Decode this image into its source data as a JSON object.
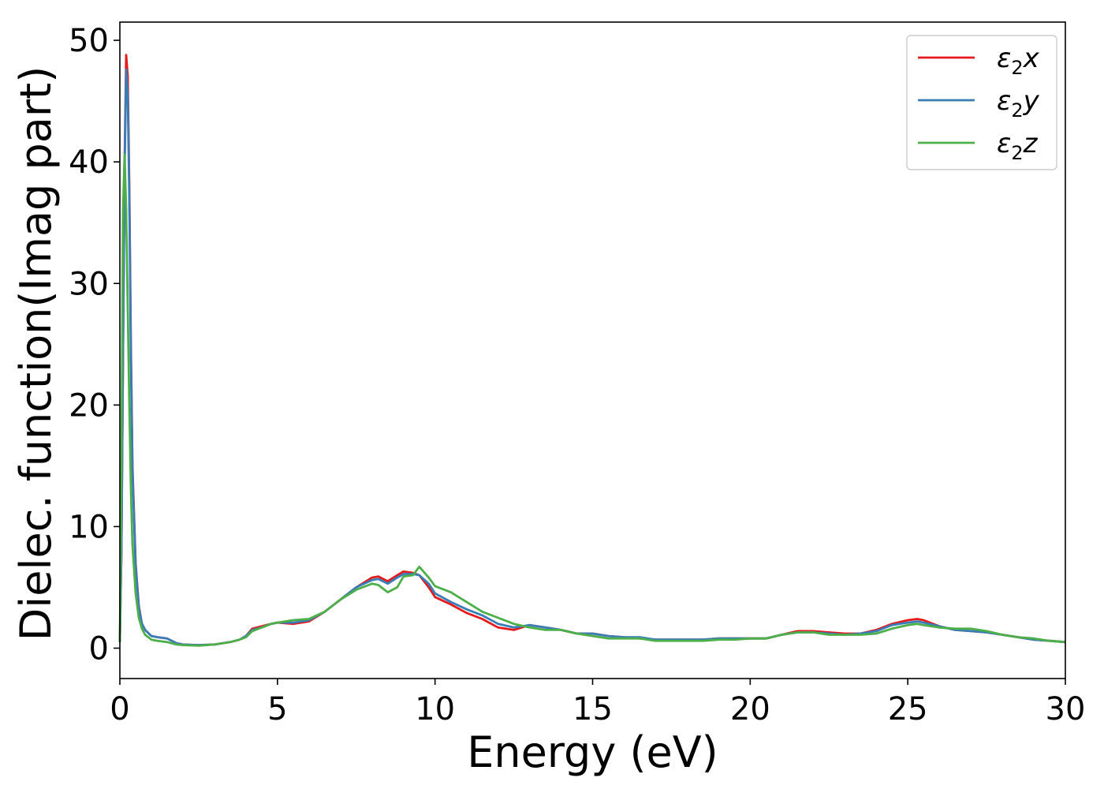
{
  "chart_data": {
    "type": "line",
    "xlabel": "Energy (eV)",
    "ylabel": "Dielec. function(Imag part)",
    "xlim": [
      0,
      30
    ],
    "ylim": [
      -2.5,
      51.5
    ],
    "xticks": [
      0,
      5,
      10,
      15,
      20,
      25,
      30
    ],
    "yticks": [
      0,
      10,
      20,
      30,
      40,
      50
    ],
    "grid": false,
    "legend_position": "top-right",
    "series": [
      {
        "name": "ε₂x",
        "legend": {
          "base": "ε",
          "sub": "2",
          "suffix": "x"
        },
        "color": "#e41a1c",
        "x": [
          0,
          0.05,
          0.1,
          0.15,
          0.2,
          0.25,
          0.3,
          0.35,
          0.4,
          0.5,
          0.6,
          0.7,
          0.8,
          1.0,
          1.2,
          1.5,
          1.8,
          2.0,
          2.5,
          3.0,
          3.5,
          3.8,
          4.0,
          4.2,
          4.5,
          4.8,
          5.0,
          5.5,
          6.0,
          6.5,
          7.0,
          7.5,
          8.0,
          8.2,
          8.5,
          8.8,
          9.0,
          9.3,
          9.5,
          9.8,
          10.0,
          10.5,
          11.0,
          11.5,
          12.0,
          12.5,
          13.0,
          13.5,
          14.0,
          14.5,
          15.0,
          15.5,
          16.0,
          16.5,
          17.0,
          17.5,
          18.0,
          18.5,
          19.0,
          19.5,
          20.0,
          20.5,
          21.0,
          21.5,
          22.0,
          22.5,
          23.0,
          23.5,
          24.0,
          24.5,
          25.0,
          25.3,
          25.5,
          26.0,
          26.5,
          27.0,
          27.5,
          28.0,
          28.5,
          29.0,
          29.5,
          30.0
        ],
        "values": [
          0.5,
          8,
          24,
          40,
          48.8,
          47.0,
          38,
          25,
          15,
          7,
          3.5,
          2.0,
          1.5,
          1.0,
          0.9,
          0.8,
          0.4,
          0.3,
          0.25,
          0.3,
          0.5,
          0.7,
          1.0,
          1.6,
          1.8,
          2.0,
          2.1,
          2.0,
          2.2,
          3.0,
          4.0,
          5.0,
          5.8,
          5.9,
          5.5,
          6.0,
          6.3,
          6.2,
          6.0,
          5.0,
          4.2,
          3.6,
          2.9,
          2.4,
          1.7,
          1.5,
          1.9,
          1.7,
          1.5,
          1.2,
          1.2,
          1.0,
          0.9,
          0.8,
          0.7,
          0.7,
          0.7,
          0.7,
          0.8,
          0.8,
          0.8,
          0.8,
          1.1,
          1.4,
          1.4,
          1.3,
          1.2,
          1.2,
          1.5,
          2.0,
          2.3,
          2.4,
          2.3,
          1.8,
          1.5,
          1.4,
          1.3,
          1.1,
          0.9,
          0.7,
          0.6,
          0.5
        ]
      },
      {
        "name": "ε₂y",
        "legend": {
          "base": "ε",
          "sub": "2",
          "suffix": "y"
        },
        "color": "#377eb8",
        "x": [
          0,
          0.05,
          0.1,
          0.15,
          0.2,
          0.25,
          0.3,
          0.35,
          0.4,
          0.5,
          0.6,
          0.7,
          0.8,
          1.0,
          1.2,
          1.5,
          1.8,
          2.0,
          2.5,
          3.0,
          3.5,
          3.8,
          4.0,
          4.2,
          4.5,
          4.8,
          5.0,
          5.5,
          6.0,
          6.5,
          7.0,
          7.5,
          8.0,
          8.2,
          8.5,
          8.8,
          9.0,
          9.3,
          9.5,
          9.8,
          10.0,
          10.5,
          11.0,
          11.5,
          12.0,
          12.5,
          13.0,
          13.5,
          14.0,
          14.5,
          15.0,
          15.5,
          16.0,
          16.5,
          17.0,
          17.5,
          18.0,
          18.5,
          19.0,
          19.5,
          20.0,
          20.5,
          21.0,
          21.5,
          22.0,
          22.5,
          23.0,
          23.5,
          24.0,
          24.5,
          25.0,
          25.3,
          25.5,
          26.0,
          26.5,
          27.0,
          27.5,
          28.0,
          28.5,
          29.0,
          29.5,
          30.0
        ],
        "values": [
          0.5,
          8,
          24,
          39,
          47.6,
          45.5,
          37,
          24,
          14.5,
          6.8,
          3.4,
          2.0,
          1.5,
          1.0,
          0.9,
          0.8,
          0.4,
          0.3,
          0.25,
          0.3,
          0.5,
          0.7,
          1.0,
          1.5,
          1.7,
          2.0,
          2.1,
          2.1,
          2.3,
          3.0,
          4.0,
          5.0,
          5.6,
          5.7,
          5.3,
          5.8,
          6.1,
          6.1,
          6.0,
          5.3,
          4.5,
          3.8,
          3.2,
          2.7,
          2.0,
          1.7,
          1.9,
          1.7,
          1.5,
          1.2,
          1.2,
          1.0,
          0.9,
          0.9,
          0.7,
          0.7,
          0.7,
          0.7,
          0.8,
          0.8,
          0.8,
          0.8,
          1.1,
          1.3,
          1.3,
          1.2,
          1.1,
          1.2,
          1.4,
          1.9,
          2.1,
          2.2,
          2.1,
          1.8,
          1.5,
          1.4,
          1.3,
          1.1,
          0.9,
          0.7,
          0.6,
          0.5
        ]
      },
      {
        "name": "ε₂z",
        "legend": {
          "base": "ε",
          "sub": "2",
          "suffix": "z"
        },
        "color": "#4daf4a",
        "x": [
          0,
          0.05,
          0.1,
          0.15,
          0.2,
          0.25,
          0.3,
          0.35,
          0.4,
          0.5,
          0.6,
          0.7,
          0.8,
          1.0,
          1.2,
          1.5,
          1.8,
          2.0,
          2.5,
          3.0,
          3.5,
          3.8,
          4.0,
          4.2,
          4.5,
          4.8,
          5.0,
          5.5,
          6.0,
          6.5,
          7.0,
          7.5,
          8.0,
          8.2,
          8.5,
          8.8,
          9.0,
          9.3,
          9.5,
          9.8,
          10.0,
          10.5,
          11.0,
          11.5,
          12.0,
          12.5,
          13.0,
          13.5,
          14.0,
          14.5,
          15.0,
          15.5,
          16.0,
          16.5,
          17.0,
          17.5,
          18.0,
          18.5,
          19.0,
          19.5,
          20.0,
          20.5,
          21.0,
          21.5,
          22.0,
          22.5,
          23.0,
          23.5,
          24.0,
          24.5,
          25.0,
          25.3,
          25.5,
          26.0,
          26.5,
          27.0,
          27.5,
          28.0,
          28.5,
          29.0,
          29.5,
          30.0
        ],
        "values": [
          0.5,
          15,
          36,
          40.6,
          36,
          28,
          20,
          13,
          8.5,
          4.5,
          2.5,
          1.6,
          1.1,
          0.7,
          0.6,
          0.5,
          0.3,
          0.25,
          0.2,
          0.3,
          0.5,
          0.7,
          0.9,
          1.4,
          1.7,
          2.0,
          2.1,
          2.3,
          2.4,
          3.0,
          4.0,
          4.8,
          5.3,
          5.2,
          4.6,
          5.0,
          5.9,
          6.0,
          6.7,
          5.8,
          5.1,
          4.6,
          3.8,
          3.0,
          2.5,
          2.0,
          1.7,
          1.5,
          1.5,
          1.2,
          1.0,
          0.8,
          0.8,
          0.8,
          0.6,
          0.6,
          0.6,
          0.6,
          0.7,
          0.7,
          0.8,
          0.8,
          1.1,
          1.3,
          1.3,
          1.1,
          1.1,
          1.1,
          1.2,
          1.6,
          1.9,
          2.0,
          1.9,
          1.7,
          1.6,
          1.6,
          1.4,
          1.1,
          0.9,
          0.8,
          0.6,
          0.5
        ]
      }
    ]
  }
}
